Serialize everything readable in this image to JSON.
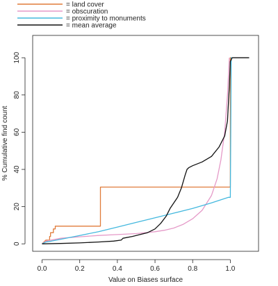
{
  "chart_data": {
    "type": "line",
    "title": "",
    "xlabel": "Value on Biases surface",
    "ylabel": "% Cumulative find count",
    "xlim": [
      -0.05,
      1.15
    ],
    "ylim": [
      -4,
      112
    ],
    "xticks": [
      "0.0",
      "0.2",
      "0.4",
      "0.6",
      "0.8",
      "1.0"
    ],
    "xtick_values": [
      0,
      0.2,
      0.4,
      0.6,
      0.8,
      1.0
    ],
    "yticks": [
      "0",
      "20",
      "40",
      "60",
      "80",
      "100"
    ],
    "ytick_values": [
      0,
      20,
      40,
      60,
      80,
      100
    ],
    "grid": false,
    "legend_position": "top-left, outside plot",
    "series": [
      {
        "name": "= land cover",
        "color": "#E07B39",
        "points": [
          [
            0.0,
            0
          ],
          [
            0.02,
            2
          ],
          [
            0.04,
            2
          ],
          [
            0.04,
            4
          ],
          [
            0.045,
            4
          ],
          [
            0.045,
            6
          ],
          [
            0.06,
            6
          ],
          [
            0.06,
            8
          ],
          [
            0.07,
            8
          ],
          [
            0.07,
            9.5
          ],
          [
            0.31,
            9.5
          ],
          [
            0.31,
            30.5
          ],
          [
            1.0,
            30.5
          ],
          [
            1.0,
            100
          ],
          [
            1.01,
            100
          ]
        ]
      },
      {
        "name": "= obscuration",
        "color": "#E59AC8",
        "points": [
          [
            0.0,
            0
          ],
          [
            0.02,
            1.5
          ],
          [
            0.1,
            3
          ],
          [
            0.2,
            3.8
          ],
          [
            0.3,
            4.5
          ],
          [
            0.4,
            5
          ],
          [
            0.5,
            5.5
          ],
          [
            0.6,
            6.5
          ],
          [
            0.65,
            7.3
          ],
          [
            0.7,
            8.5
          ],
          [
            0.75,
            10.5
          ],
          [
            0.8,
            13.5
          ],
          [
            0.85,
            18
          ],
          [
            0.9,
            26
          ],
          [
            0.93,
            35
          ],
          [
            0.95,
            45
          ],
          [
            0.97,
            60
          ],
          [
            0.985,
            80
          ],
          [
            0.995,
            100
          ]
        ]
      },
      {
        "name": "= proximity to monuments",
        "color": "#43B8DE",
        "points": [
          [
            0.0,
            0
          ],
          [
            0.02,
            1
          ],
          [
            0.05,
            1.5
          ],
          [
            0.1,
            2.5
          ],
          [
            0.2,
            4.5
          ],
          [
            0.3,
            6.5
          ],
          [
            0.4,
            9
          ],
          [
            0.5,
            11.5
          ],
          [
            0.6,
            14
          ],
          [
            0.7,
            16.5
          ],
          [
            0.8,
            19
          ],
          [
            0.9,
            22
          ],
          [
            0.99,
            25
          ],
          [
            1.0,
            25
          ],
          [
            1.005,
            100
          ],
          [
            1.01,
            100
          ]
        ]
      },
      {
        "name": "= mean average",
        "color": "#111111",
        "points": [
          [
            0.0,
            0
          ],
          [
            0.1,
            0.2
          ],
          [
            0.2,
            0.5
          ],
          [
            0.3,
            1
          ],
          [
            0.38,
            1.5
          ],
          [
            0.42,
            2
          ],
          [
            0.43,
            3
          ],
          [
            0.48,
            4
          ],
          [
            0.52,
            5
          ],
          [
            0.56,
            6
          ],
          [
            0.6,
            8
          ],
          [
            0.63,
            11
          ],
          [
            0.66,
            15
          ],
          [
            0.68,
            19
          ],
          [
            0.7,
            22
          ],
          [
            0.72,
            25
          ],
          [
            0.74,
            30
          ],
          [
            0.76,
            37
          ],
          [
            0.77,
            40
          ],
          [
            0.78,
            41
          ],
          [
            0.8,
            42
          ],
          [
            0.85,
            44
          ],
          [
            0.9,
            47
          ],
          [
            0.94,
            52
          ],
          [
            0.97,
            58
          ],
          [
            0.985,
            66
          ],
          [
            0.995,
            85
          ],
          [
            1.0,
            98
          ],
          [
            1.01,
            100
          ],
          [
            1.1,
            100
          ]
        ]
      }
    ]
  }
}
